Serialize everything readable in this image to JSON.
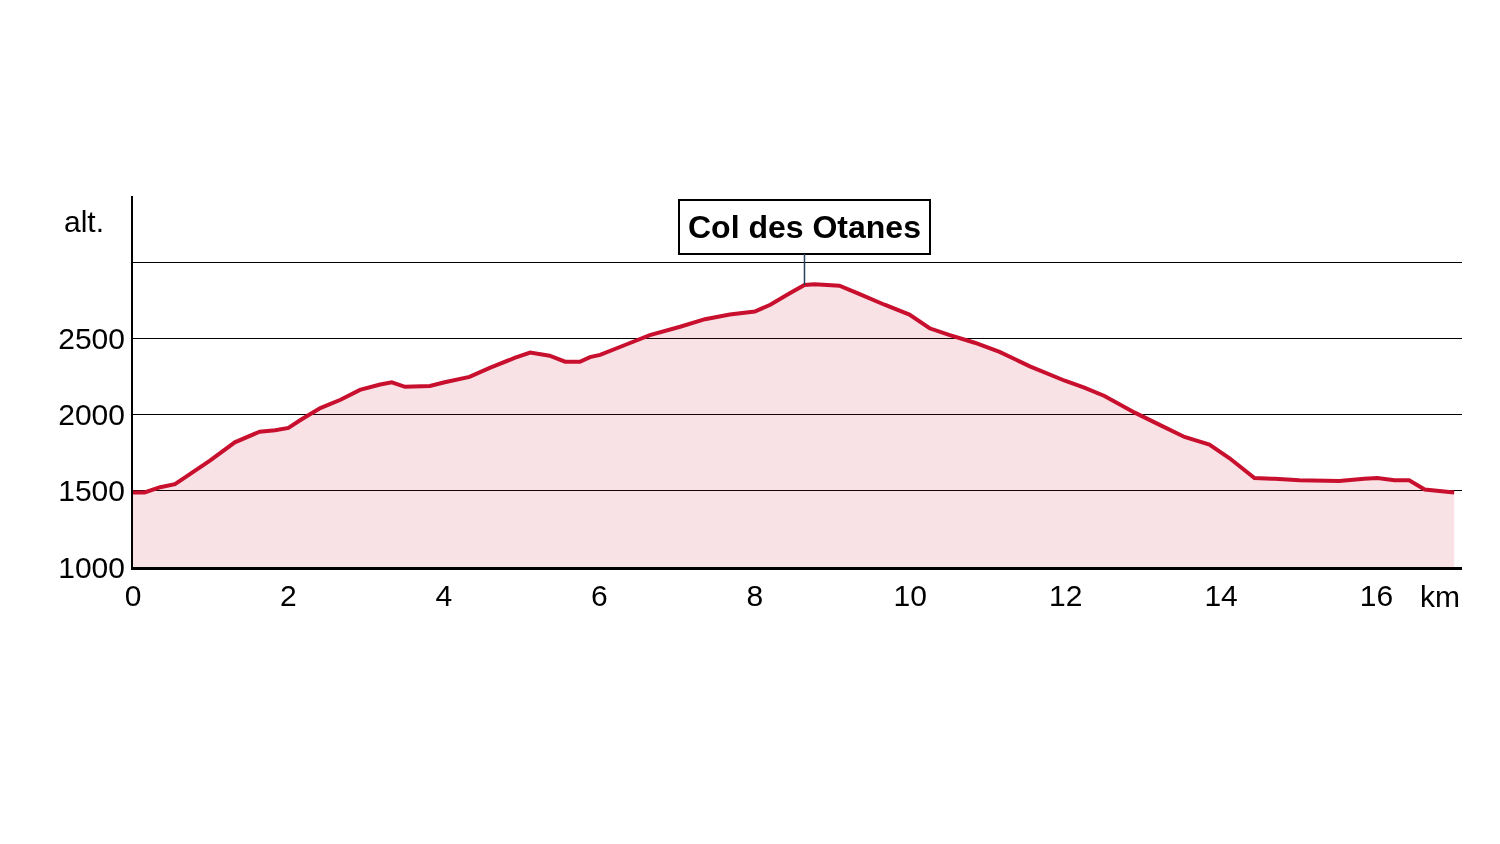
{
  "chart_data": {
    "type": "area",
    "xlabel": "km",
    "ylabel": "alt.",
    "x": [
      0,
      0.15,
      0.35,
      0.54,
      0.67,
      0.99,
      1.31,
      1.63,
      1.83,
      2.0,
      2.15,
      2.41,
      2.67,
      2.92,
      3.18,
      3.33,
      3.5,
      3.82,
      4.01,
      4.33,
      4.59,
      4.91,
      5.11,
      5.36,
      5.56,
      5.75,
      5.88,
      6.01,
      6.33,
      6.65,
      7.04,
      7.36,
      7.68,
      8.0,
      8.2,
      8.45,
      8.64,
      8.77,
      9.09,
      9.35,
      9.67,
      9.99,
      10.25,
      10.51,
      10.83,
      11.15,
      11.54,
      11.99,
      12.24,
      12.5,
      12.89,
      13.21,
      13.53,
      13.85,
      14.11,
      14.43,
      14.69,
      15.01,
      15.52,
      15.84,
      16.01,
      16.23,
      16.42,
      16.62,
      17.0
    ],
    "series": [
      {
        "color": "#c8102e",
        "values": [
          1490,
          1490,
          1525,
          1545,
          1590,
          1700,
          1820,
          1890,
          1900,
          1915,
          1965,
          2045,
          2100,
          2165,
          2200,
          2215,
          2185,
          2190,
          2215,
          2250,
          2310,
          2375,
          2410,
          2390,
          2350,
          2350,
          2380,
          2395,
          2460,
          2525,
          2580,
          2630,
          2660,
          2680,
          2725,
          2800,
          2855,
          2860,
          2850,
          2795,
          2725,
          2660,
          2570,
          2525,
          2475,
          2415,
          2320,
          2225,
          2180,
          2125,
          2015,
          1935,
          1855,
          1805,
          1715,
          1585,
          1580,
          1570,
          1565,
          1580,
          1585,
          1570,
          1570,
          1510,
          1490
        ]
      }
    ],
    "xlim": [
      0,
      17.1
    ],
    "xticks": [
      0,
      2,
      4,
      6,
      8,
      10,
      12,
      14,
      16
    ],
    "ylim": [
      1000,
      3440
    ],
    "yticks": [
      1000,
      1500,
      2000,
      2500,
      {
        "value": 3000,
        "label": null
      }
    ],
    "grid": "y",
    "line_style": "solid",
    "annotations": [
      {
        "text": "Col des Otanes",
        "x": 8.64,
        "y": 2855
      }
    ]
  }
}
